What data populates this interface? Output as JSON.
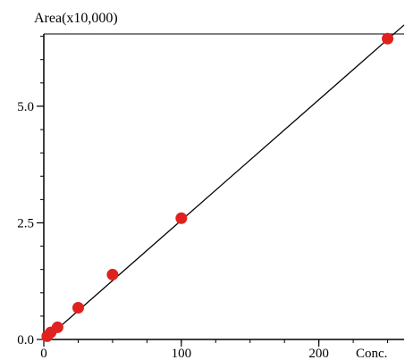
{
  "chart_data": {
    "type": "scatter",
    "title": "",
    "ylabel": "Area(x10,000)",
    "xlabel": "Conc.",
    "xlim": [
      0,
      262
    ],
    "ylim": [
      0,
      6.55
    ],
    "x_ticks": [
      {
        "value": 0,
        "label": "0"
      },
      {
        "value": 100,
        "label": "100"
      },
      {
        "value": 200,
        "label": "200"
      }
    ],
    "y_ticks": [
      {
        "value": 0,
        "label": "0.0"
      },
      {
        "value": 2.5,
        "label": "2.5"
      },
      {
        "value": 5.0,
        "label": "5.0"
      }
    ],
    "x_minor_step": 25,
    "y_minor_step": 0.5,
    "grid": false,
    "series": [
      {
        "points": [
          {
            "x": 2.5,
            "y": 0.07
          },
          {
            "x": 5,
            "y": 0.15
          },
          {
            "x": 10,
            "y": 0.26
          },
          {
            "x": 25,
            "y": 0.68
          },
          {
            "x": 50,
            "y": 1.39
          },
          {
            "x": 100,
            "y": 2.6
          },
          {
            "x": 250,
            "y": 6.45
          }
        ],
        "marker_color": "#e0221e"
      }
    ],
    "fit_line": {
      "x_range": [
        0,
        262
      ],
      "slope": 0.02585,
      "intercept": -0.03,
      "color": "#000000"
    }
  }
}
